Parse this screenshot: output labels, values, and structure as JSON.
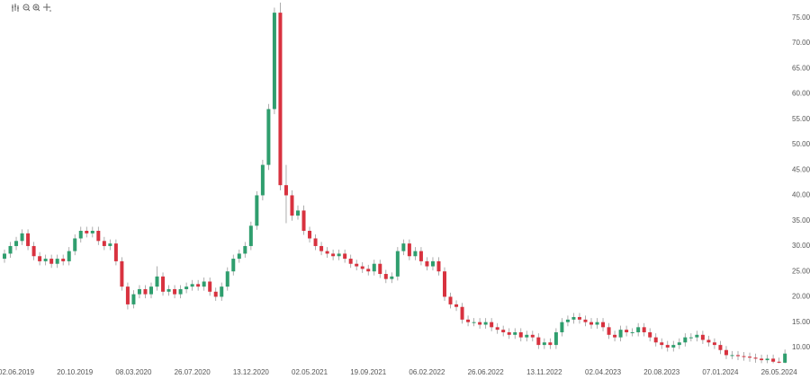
{
  "chart_data": {
    "type": "candlestick",
    "up_color": "#2f9e6e",
    "down_color": "#d8323f",
    "grid": false,
    "ylim": [
      6.8,
      78.5
    ],
    "yticks": [
      {
        "value": 10,
        "label": "10.00"
      },
      {
        "value": 15,
        "label": "15.00"
      },
      {
        "value": 20,
        "label": "20.00"
      },
      {
        "value": 25,
        "label": "25.00"
      },
      {
        "value": 30,
        "label": "30.00"
      },
      {
        "value": 35,
        "label": "35.00"
      },
      {
        "value": 40,
        "label": "40.00"
      },
      {
        "value": 45,
        "label": "45.00"
      },
      {
        "value": 50,
        "label": "50.00"
      },
      {
        "value": 55,
        "label": "55.00"
      },
      {
        "value": 60,
        "label": "60.00"
      },
      {
        "value": 65,
        "label": "65.00"
      },
      {
        "value": 70,
        "label": "70.00"
      },
      {
        "value": 75,
        "label": "75.00"
      }
    ],
    "categories": [
      null,
      null,
      "02.06.2019",
      null,
      null,
      null,
      null,
      null,
      null,
      null,
      null,
      null,
      "20.10.2019",
      null,
      null,
      null,
      null,
      null,
      null,
      null,
      null,
      null,
      "08.03.2020",
      null,
      null,
      null,
      null,
      null,
      null,
      null,
      null,
      null,
      "26.07.2020",
      null,
      null,
      null,
      null,
      null,
      null,
      null,
      null,
      null,
      "13.12.2020",
      null,
      null,
      null,
      null,
      null,
      null,
      null,
      null,
      null,
      "02.05.2021",
      null,
      null,
      null,
      null,
      null,
      null,
      null,
      null,
      null,
      "19.09.2021",
      null,
      null,
      null,
      null,
      null,
      null,
      null,
      null,
      null,
      "06.02.2022",
      null,
      null,
      null,
      null,
      null,
      null,
      null,
      null,
      null,
      "26.06.2022",
      null,
      null,
      null,
      null,
      null,
      null,
      null,
      null,
      null,
      "13.11.2022",
      null,
      null,
      null,
      null,
      null,
      null,
      null,
      null,
      null,
      "02.04.2023",
      null,
      null,
      null,
      null,
      null,
      null,
      null,
      null,
      null,
      "20.08.2023",
      null,
      null,
      null,
      null,
      null,
      null,
      null,
      null,
      null,
      "07.01.2024",
      null,
      null,
      null,
      null,
      null,
      null,
      null,
      null,
      null,
      "26.05.2024",
      null
    ],
    "open": [
      27.5,
      28.5,
      30,
      31,
      32.5,
      30,
      28,
      27,
      27.5,
      26.5,
      27.5,
      27,
      29,
      31.5,
      33,
      32.5,
      33,
      31,
      30,
      30.5,
      27,
      22,
      18.5,
      20.5,
      21.5,
      20.5,
      22,
      24,
      21,
      21.5,
      20.5,
      21.5,
      22,
      22.5,
      22,
      23,
      21,
      20,
      22,
      25,
      27.5,
      28.5,
      30,
      34,
      40,
      46,
      57,
      76,
      42,
      40,
      36,
      37,
      33,
      31.5,
      30,
      29,
      28.5,
      28,
      28.5,
      27.5,
      26.5,
      26,
      25.5,
      25,
      26.5,
      24.5,
      23.5,
      24,
      29,
      30.5,
      28,
      29,
      27,
      26,
      27,
      25,
      20,
      18.5,
      18,
      15.5,
      15,
      15,
      14.5,
      15,
      14,
      13.5,
      13,
      12.5,
      13,
      12,
      12.5,
      12,
      10.5,
      11,
      10.5,
      13,
      15,
      15.5,
      16,
      15.5,
      15,
      14.5,
      15,
      14,
      12.5,
      12,
      13.5,
      13,
      13,
      14,
      13,
      12,
      11,
      10.5,
      10,
      10.5,
      11,
      12,
      12,
      12.5,
      11.5,
      11,
      10.5,
      9.5,
      8.5,
      8.5,
      8.3,
      8.2,
      8,
      7.8,
      7.5,
      7.8,
      7.2,
      7
    ],
    "high": [
      29.3,
      30.8,
      31.8,
      33.3,
      33.3,
      30.8,
      28.8,
      28.3,
      28.3,
      28.3,
      28.3,
      29.8,
      32.3,
      33.8,
      33.8,
      33.8,
      33.8,
      31.8,
      31.3,
      31.3,
      27.8,
      22.8,
      21.3,
      22.3,
      22.3,
      22.8,
      26,
      24.8,
      22.3,
      22.3,
      22.3,
      22.8,
      23.3,
      23.3,
      23.8,
      23.8,
      21.8,
      22.8,
      25.8,
      28.3,
      29.3,
      30.8,
      34.8,
      40.8,
      47,
      58,
      77,
      78,
      46,
      41,
      38,
      38,
      33.8,
      32.3,
      30.8,
      29.8,
      29.3,
      29.3,
      29.3,
      28.3,
      27.3,
      26.8,
      26.3,
      27.3,
      27.3,
      25.3,
      24.8,
      29.8,
      31.3,
      31.3,
      29.8,
      29.8,
      27.8,
      27.8,
      27.8,
      25.8,
      20.8,
      19.3,
      18.8,
      16.3,
      15.8,
      15.8,
      15.8,
      15.8,
      14.8,
      14.3,
      13.8,
      13.8,
      13.8,
      13.3,
      13.3,
      12.8,
      11.8,
      11.8,
      13.8,
      15.8,
      16.3,
      16.8,
      16.8,
      16.3,
      15.8,
      15.8,
      15.8,
      14.8,
      13.3,
      14.3,
      14.3,
      13.8,
      14.8,
      14.8,
      13.8,
      12.8,
      11.8,
      11.3,
      11.3,
      11.8,
      12.8,
      12.8,
      13.3,
      13.3,
      12.3,
      11.8,
      11.3,
      10.3,
      9.3,
      9.3,
      9.1,
      9,
      8.8,
      8.6,
      8.6,
      8.6,
      8,
      9.6
    ],
    "low": [
      26.7,
      27.7,
      29.2,
      30.2,
      29.2,
      27.2,
      26.2,
      26.2,
      25.7,
      25.7,
      26.2,
      26.2,
      28.2,
      30.7,
      31.7,
      31.7,
      30.2,
      29.2,
      29.2,
      26.2,
      21.2,
      17.5,
      17.7,
      19.7,
      19.7,
      19.7,
      21.2,
      20.2,
      20.2,
      19.7,
      19.7,
      20.7,
      21.2,
      21.2,
      21.2,
      20.2,
      19.2,
      19.2,
      21.2,
      24.2,
      26.7,
      27.7,
      29.2,
      33.2,
      39,
      45,
      56,
      41,
      34.5,
      35,
      35.2,
      32.2,
      30.7,
      29.2,
      28.2,
      27.7,
      27.2,
      27.2,
      26.7,
      25.7,
      25.2,
      24.7,
      24.2,
      24.2,
      23.7,
      22.7,
      22.7,
      23.2,
      28.2,
      27.2,
      27.2,
      26.2,
      25.2,
      25.2,
      24.2,
      19.2,
      17.7,
      17.2,
      14.7,
      14.2,
      14.2,
      13.7,
      13.7,
      13.2,
      12.7,
      12.2,
      11.7,
      11.7,
      11.2,
      11.2,
      11.2,
      9.7,
      9.7,
      9.7,
      9.7,
      12.2,
      14.2,
      14.7,
      14.7,
      14.2,
      13.7,
      13.7,
      13.2,
      11.7,
      11.2,
      11.2,
      12.2,
      12.2,
      12.2,
      12.2,
      11.2,
      10.2,
      9.7,
      9.2,
      9.2,
      9.7,
      10.2,
      11.2,
      11.2,
      10.7,
      10.2,
      9.7,
      8.7,
      7.7,
      7.7,
      7.5,
      7.4,
      7.2,
      7,
      6.9,
      6.9,
      6.9,
      6.9,
      6.9
    ],
    "close": [
      28.5,
      30,
      31,
      32.5,
      30,
      28,
      27,
      27.5,
      26.5,
      27.5,
      27,
      29,
      31.5,
      33,
      32.5,
      33,
      31,
      30,
      30.5,
      27,
      22,
      18.5,
      20.5,
      21.5,
      20.5,
      22,
      24,
      21,
      21.5,
      20.5,
      21.5,
      22,
      22.5,
      22,
      23,
      21,
      20,
      22,
      25,
      27.5,
      28.5,
      30,
      34,
      40,
      46,
      57,
      76,
      42,
      40,
      36,
      37,
      33,
      31.5,
      30,
      29,
      28.5,
      28,
      28.5,
      27.5,
      26.5,
      26,
      25.5,
      25,
      26.5,
      24.5,
      23.5,
      24,
      29,
      30.5,
      28,
      29,
      27,
      26,
      27,
      25,
      20,
      18.5,
      18,
      15.5,
      15,
      15,
      14.5,
      15,
      14,
      13.5,
      13,
      12.5,
      13,
      12,
      12.5,
      12,
      10.5,
      11,
      10.5,
      13,
      15,
      15.5,
      16,
      15.5,
      15,
      14.5,
      15,
      14,
      12.5,
      12,
      13.5,
      13,
      13,
      14,
      13,
      12,
      11,
      10.5,
      10,
      10.5,
      11,
      12,
      12,
      12.5,
      11.5,
      11,
      10.5,
      9.5,
      8.5,
      8.5,
      8.3,
      8.2,
      8,
      7.8,
      7.5,
      7.8,
      7.2,
      7,
      8.8
    ]
  }
}
